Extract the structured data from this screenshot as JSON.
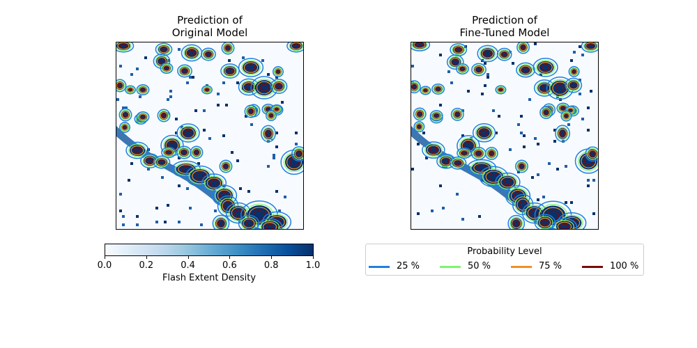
{
  "chart_data": [
    {
      "type": "heatmap",
      "title_line1": "Prediction of",
      "title_line2": "Original Model",
      "xlabel": "",
      "ylabel": "",
      "colormap": "Blues",
      "contour_levels": [
        0.25,
        0.5,
        0.75,
        1.0
      ]
    },
    {
      "type": "heatmap",
      "title_line1": "Prediction of",
      "title_line2": "Fine-Tuned Model",
      "xlabel": "",
      "ylabel": "",
      "colormap": "Blues",
      "contour_levels": [
        0.25,
        0.5,
        0.75,
        1.0
      ]
    }
  ],
  "colorbar": {
    "label": "Flash Extent Density",
    "range": [
      0.0,
      1.0
    ],
    "ticks": [
      "0.0",
      "0.2",
      "0.4",
      "0.6",
      "0.8",
      "1.0"
    ]
  },
  "legend": {
    "title": "Probability Level",
    "items": [
      {
        "label": "25 %",
        "color": "#1f7fe0"
      },
      {
        "label": "50 %",
        "color": "#7cf56e"
      },
      {
        "label": "75 %",
        "color": "#f0901e"
      },
      {
        "label": "100 %",
        "color": "#7a0a0a"
      }
    ]
  }
}
